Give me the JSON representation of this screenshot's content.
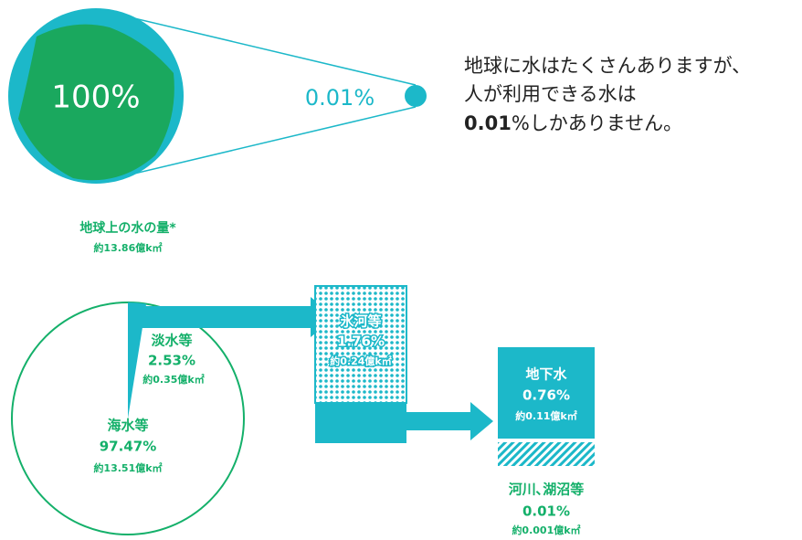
{
  "globe": {
    "total": "100%",
    "usable": "0.01%"
  },
  "intro": {
    "lines": [
      "地球に水はたくさんありますが、",
      "人が利用できる水は"
    ],
    "highlight": "0.01",
    "ending": "%しかありません。"
  },
  "pie": {
    "title": "地球上の水の量*",
    "total": "約13.86億k㎡",
    "slices": [
      {
        "name": "海水等",
        "value": 97.47,
        "label": "97.47%",
        "amount": "約13.51億k㎡"
      },
      {
        "name": "淡水等",
        "value": 2.53,
        "label": "2.53%",
        "amount": "約0.35億k㎡"
      }
    ]
  },
  "glacier": {
    "name": "氷河等",
    "label": "1.76%",
    "amount": "約0.24億k㎡"
  },
  "groundwater": {
    "name": "地下水",
    "label": "0.76%",
    "amount": "約0.11億k㎡"
  },
  "rivers": {
    "name": "河川､湖沼等",
    "label": "0.01%",
    "amount": "約0.001億k㎡"
  }
}
